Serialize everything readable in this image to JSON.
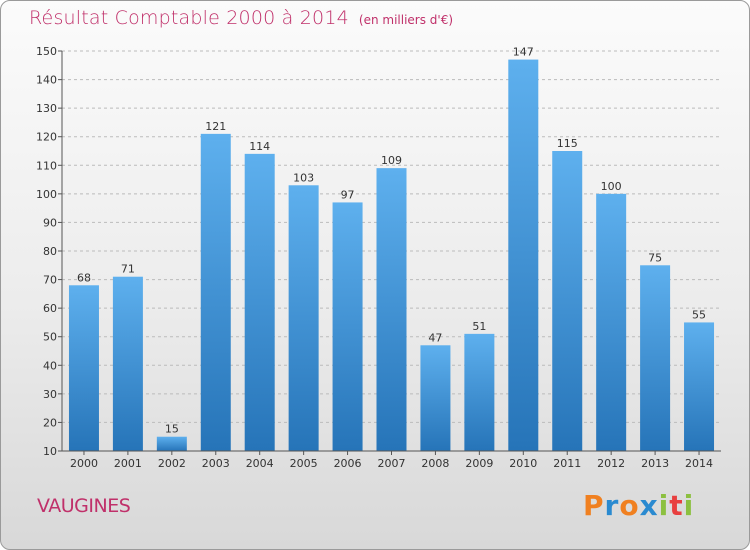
{
  "header": {
    "title": "Résultat Comptable 2000 à 2014",
    "unit": "(en milliers d'€)"
  },
  "commune": "VAUGINES",
  "logo": {
    "text": "Proxiti",
    "letters": [
      "P",
      "r",
      "o",
      "x",
      "i",
      "t",
      "i"
    ],
    "colors": [
      "#f08020",
      "#2a8ad0",
      "#f08020",
      "#2a8ad0",
      "#8cc040",
      "#e84040",
      "#8cc040"
    ]
  },
  "colors": {
    "title": "#c0306a",
    "bar_top": "#5eb0ee",
    "bar_bottom": "#2674b8",
    "grid": "#bbbbbb",
    "axis": "#555555"
  },
  "chart_data": {
    "type": "bar",
    "title": "Résultat Comptable 2000 à 2014",
    "subtitle": "(en milliers d'€)",
    "xlabel": "",
    "ylabel": "",
    "categories": [
      "2000",
      "2001",
      "2002",
      "2003",
      "2004",
      "2005",
      "2006",
      "2007",
      "2008",
      "2009",
      "2010",
      "2011",
      "2012",
      "2013",
      "2014"
    ],
    "values": [
      68,
      71,
      15,
      121,
      114,
      103,
      97,
      109,
      47,
      51,
      147,
      115,
      100,
      75,
      55
    ],
    "ylim": [
      10,
      150
    ],
    "yticks": [
      10,
      20,
      30,
      40,
      50,
      60,
      70,
      80,
      90,
      100,
      110,
      120,
      130,
      140,
      150
    ],
    "grid": true,
    "data_labels": true
  }
}
